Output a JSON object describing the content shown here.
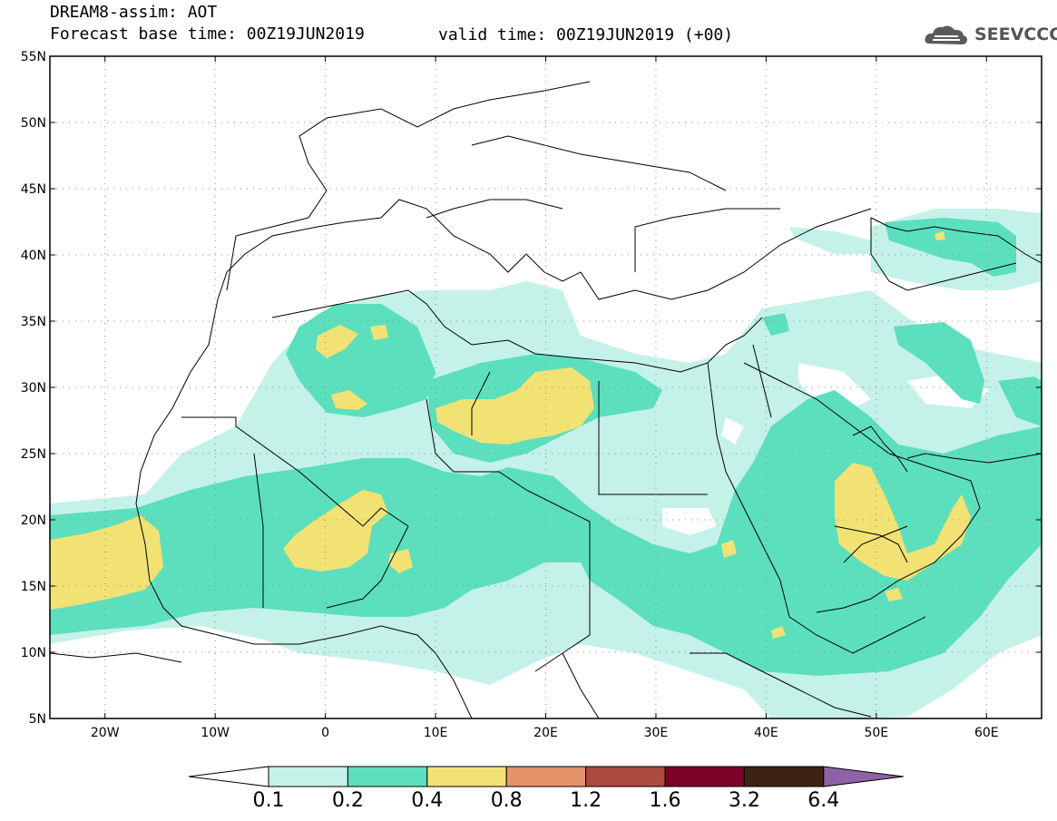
{
  "header": {
    "line1": "DREAM8-assim: AOT",
    "line2": "Forecast base time: 00Z19JUN2019",
    "valid": "valid time: 00Z19JUN2019 (+00)"
  },
  "logo": {
    "text": "SEEVCCC",
    "icon": "cloud-icon"
  },
  "map": {
    "lat_labels": [
      "55N",
      "50N",
      "45N",
      "40N",
      "35N",
      "30N",
      "25N",
      "20N",
      "15N",
      "10N",
      "5N"
    ],
    "lon_labels": [
      "20W",
      "10W",
      "0",
      "10E",
      "20E",
      "30E",
      "40E",
      "50E",
      "60E"
    ],
    "extent": {
      "lon_min": -25,
      "lon_max": 65,
      "lat_min": 5,
      "lat_max": 55
    }
  },
  "colorbar": {
    "thresholds": [
      "0.1",
      "0.2",
      "0.4",
      "0.8",
      "1.2",
      "1.6",
      "3.2",
      "6.4"
    ],
    "colors": [
      "#ffffff",
      "#c4f1e8",
      "#5cdfbd",
      "#f2e274",
      "#e4936b",
      "#ae4a3f",
      "#7b0326",
      "#3b2414",
      "#8d63a6"
    ]
  },
  "colors": {
    "aot_0_1": "#c4f1e8",
    "aot_0_2": "#5cdfbd",
    "aot_0_4": "#f2e274"
  }
}
